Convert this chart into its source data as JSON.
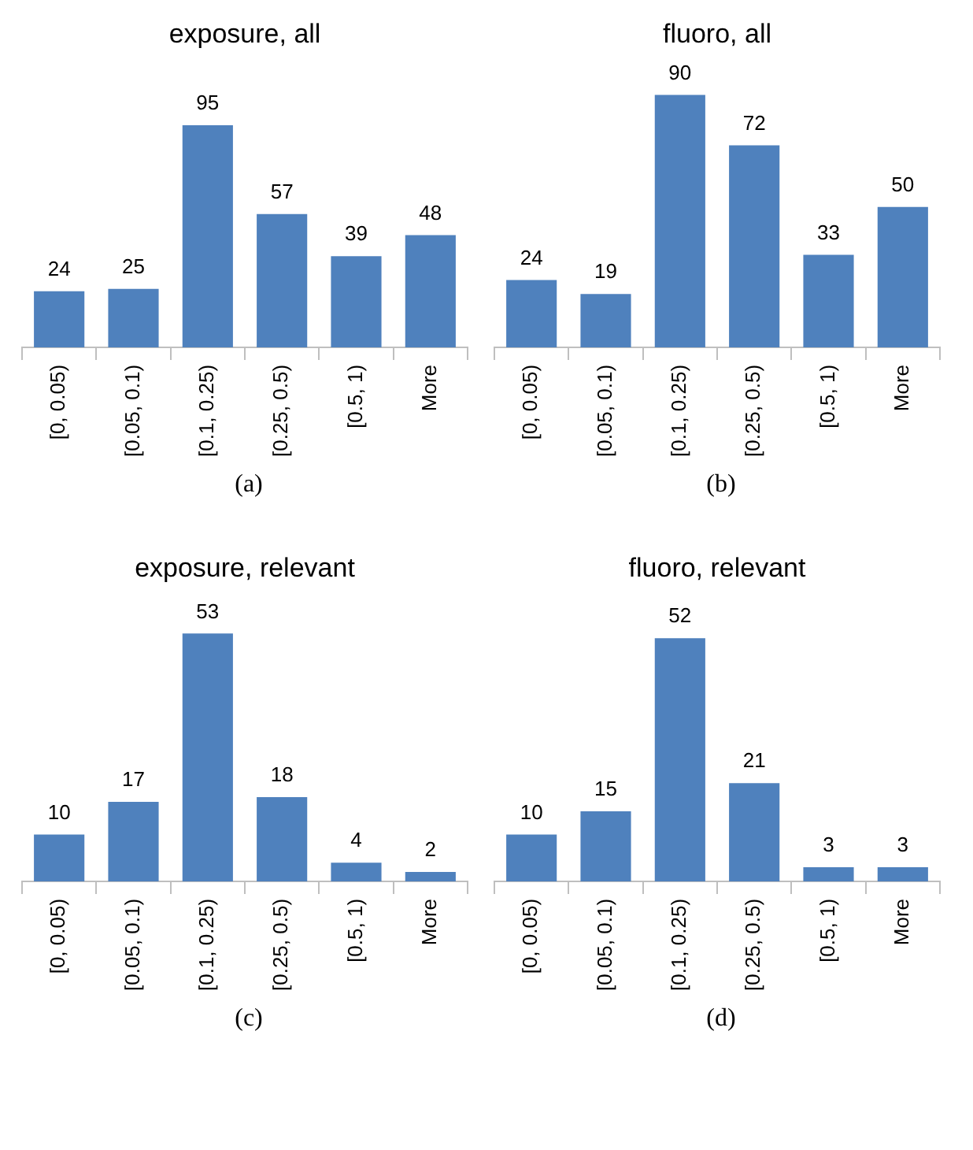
{
  "chart_data": [
    {
      "type": "bar",
      "title": "exposure, all",
      "categories": [
        "[0, 0.05)",
        "[0.05, 0.1)",
        "[0.1, 0.25)",
        "[0.25, 0.5)",
        "[0.5, 1)",
        "More"
      ],
      "values": [
        24,
        25,
        95,
        57,
        39,
        48
      ],
      "color": "#4f81bd",
      "data_labels": true,
      "annotations": [
        "(a)"
      ]
    },
    {
      "type": "bar",
      "title": "fluoro, all",
      "categories": [
        "[0, 0.05)",
        "[0.05, 0.1)",
        "[0.1, 0.25)",
        "[0.25, 0.5)",
        "[0.5, 1)",
        "More"
      ],
      "values": [
        24,
        19,
        90,
        72,
        33,
        50
      ],
      "color": "#4f81bd",
      "data_labels": true,
      "annotations": [
        "(b)"
      ]
    },
    {
      "type": "bar",
      "title": "exposure, relevant",
      "categories": [
        "[0, 0.05)",
        "[0.05, 0.1)",
        "[0.1, 0.25)",
        "[0.25, 0.5)",
        "[0.5, 1)",
        "More"
      ],
      "values": [
        10,
        17,
        53,
        18,
        4,
        2
      ],
      "color": "#4f81bd",
      "data_labels": true,
      "annotations": [
        "(c)"
      ]
    },
    {
      "type": "bar",
      "title": "fluoro, relevant",
      "categories": [
        "[0, 0.05)",
        "[0.05, 0.1)",
        "[0.1, 0.25)",
        "[0.25, 0.5)",
        "[0.5, 1)",
        "More"
      ],
      "values": [
        10,
        15,
        52,
        21,
        3,
        3
      ],
      "color": "#4f81bd",
      "data_labels": true,
      "annotations": [
        "(d)"
      ]
    }
  ]
}
